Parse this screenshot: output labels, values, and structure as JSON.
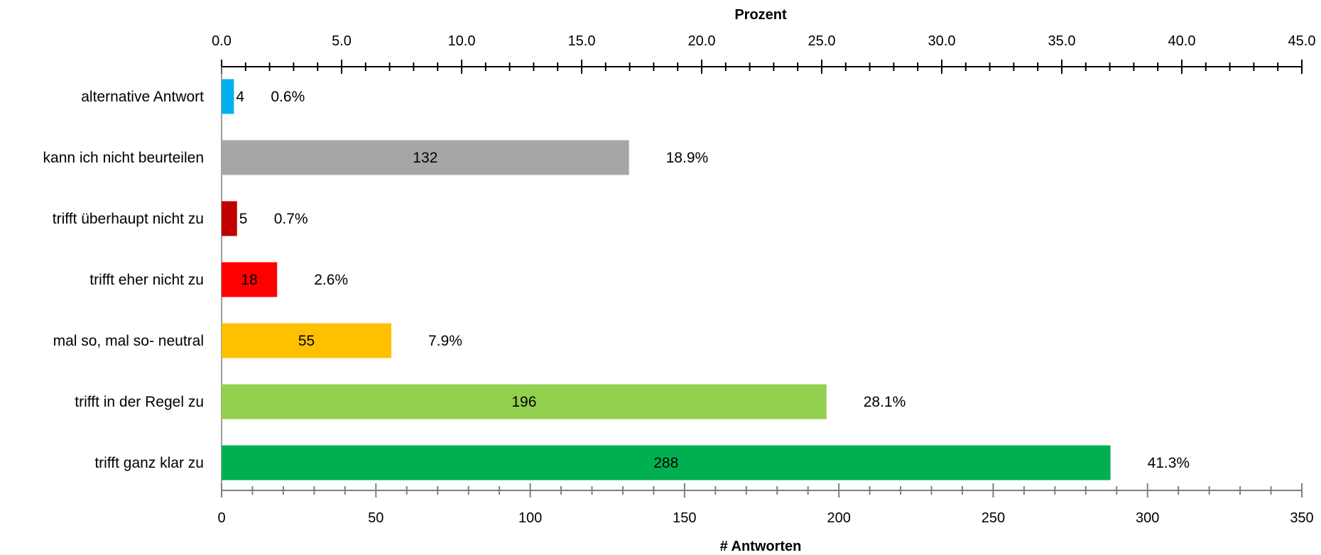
{
  "chart_data": {
    "type": "bar",
    "orientation": "horizontal",
    "categories": [
      "alternative Antwort",
      "kann ich nicht beurteilen",
      "trifft überhaupt nicht zu",
      "trifft eher nicht zu",
      "mal so, mal so- neutral",
      "trifft in der Regel zu",
      "trifft ganz klar zu"
    ],
    "values": [
      4,
      132,
      5,
      18,
      55,
      196,
      288
    ],
    "value_labels": [
      "4",
      "132",
      "5",
      "18",
      "55",
      "196",
      "288"
    ],
    "percent_values": [
      0.6,
      18.9,
      0.7,
      2.6,
      7.9,
      28.1,
      41.3
    ],
    "percent_labels": [
      "0.6%",
      "18.9%",
      "0.7%",
      "2.6%",
      "7.9%",
      "28.1%",
      "41.3%"
    ],
    "colors": [
      "#00b0f0",
      "#a6a6a6",
      "#c00000",
      "#ff0000",
      "#ffc000",
      "#92d050",
      "#00b050"
    ],
    "xlabel": "# Antworten",
    "xlim": [
      0,
      350
    ],
    "x_ticks": [
      0,
      50,
      100,
      150,
      200,
      250,
      300,
      350
    ],
    "x_tick_labels": [
      "0",
      "50",
      "100",
      "150",
      "200",
      "250",
      "300",
      "350"
    ],
    "secondary_xlabel": "Prozent",
    "secondary_xlim": [
      0,
      45
    ],
    "secondary_ticks": [
      0,
      5,
      10,
      15,
      20,
      25,
      30,
      35,
      40,
      45
    ],
    "secondary_tick_labels": [
      "0.0",
      "5.0",
      "10.0",
      "15.0",
      "20.0",
      "25.0",
      "30.0",
      "35.0",
      "40.0",
      "45.0"
    ],
    "grid": false,
    "legend": "none"
  }
}
